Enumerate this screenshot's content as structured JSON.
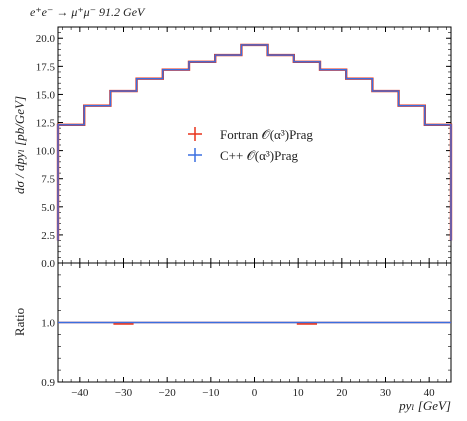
{
  "chart_data": {
    "title": "e⁺e⁻ → μ⁺μ⁻ 91.2 GeV",
    "type": "line",
    "main": {
      "ylabel": "dσ / dpyₗ [pb/GeV]",
      "ylim": [
        0.0,
        21.0
      ],
      "yticks": [
        "2.5",
        "5.0",
        "7.5",
        "10.0",
        "12.5",
        "15.0",
        "17.5",
        "20.0"
      ],
      "ytick_values": [
        2.5,
        5.0,
        7.5,
        10.0,
        12.5,
        15.0,
        17.5,
        20.0
      ],
      "bottom_tick_label": "0.0"
    },
    "ratio": {
      "ylabel": "Ratio",
      "ylim": [
        0.9,
        1.1
      ],
      "yticks": [
        "0.9",
        "1.0"
      ],
      "ytick_values": [
        0.9,
        1.0
      ]
    },
    "xlabel": "pyₗ [GeV]",
    "xlim": [
      -45,
      45
    ],
    "xticks": [
      "−40",
      "−30",
      "−20",
      "−10",
      "0",
      "10",
      "20",
      "30",
      "40"
    ],
    "xtick_values": [
      -40,
      -30,
      -20,
      -10,
      0,
      10,
      20,
      30,
      40
    ],
    "bin_edges": [
      -45,
      -39,
      -33,
      -27,
      -21,
      -15,
      -9,
      -3,
      3,
      9,
      15,
      21,
      27,
      33,
      39,
      45
    ],
    "legend": {
      "position": "center",
      "entries": [
        {
          "label": "Fortran 𝒪(α³)Prag",
          "color": "#e8331a"
        },
        {
          "label": "C++ 𝒪(α³)Prag",
          "color": "#3a6fe0"
        }
      ]
    },
    "series": [
      {
        "name": "Fortran 𝒪(α³)Prag",
        "color": "#e8331a",
        "values": [
          12.3,
          14.0,
          15.3,
          16.4,
          17.2,
          17.9,
          18.5,
          19.4,
          18.5,
          17.9,
          17.2,
          16.4,
          15.3,
          14.0,
          12.3
        ],
        "ratio": [
          1.0,
          1.0,
          1.0,
          1.0,
          1.0,
          1.0,
          1.0,
          1.0,
          1.0,
          1.0,
          1.0,
          1.0,
          1.0,
          1.0,
          1.0
        ]
      },
      {
        "name": "C++ 𝒪(α³)Prag",
        "color": "#3a6fe0",
        "values": [
          12.3,
          14.0,
          15.3,
          16.4,
          17.2,
          17.9,
          18.5,
          19.4,
          18.5,
          17.9,
          17.2,
          16.4,
          15.3,
          14.0,
          12.3
        ],
        "ratio": [
          1.0,
          1.0,
          1.0,
          1.0,
          1.0,
          1.0,
          1.0,
          1.0,
          1.0,
          1.0,
          1.0,
          1.0,
          1.0,
          1.0,
          1.0
        ]
      }
    ],
    "end_drop_value": 2.0,
    "ratio_markers": [
      {
        "series": 0,
        "x_range": [
          -33,
          -27
        ],
        "value": 1.0
      },
      {
        "series": 0,
        "x_range": [
          9,
          15
        ],
        "value": 1.0
      }
    ]
  }
}
